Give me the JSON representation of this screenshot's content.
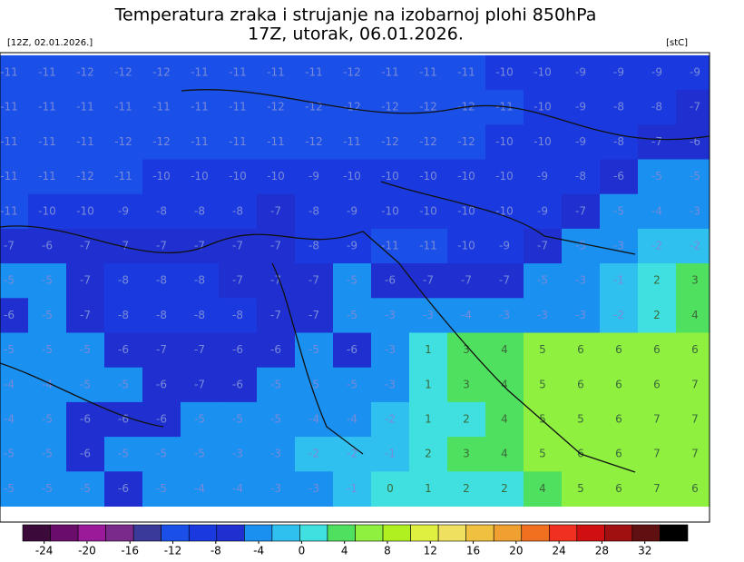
{
  "header": {
    "title": "Temperatura zraka i strujanje na izobarnoj plohi 850hPa",
    "subtitle": "17Z, utorak, 06.01.2026.",
    "run": "[12Z, 02.01.2026.]",
    "unit": "[stC]"
  },
  "map": {
    "rows": [
      [
        -11,
        -11,
        -12,
        -12,
        -12,
        -11,
        -11,
        -11,
        -11,
        -12,
        -11,
        -11,
        -11,
        -10,
        -10,
        -9,
        -9,
        -9,
        -9
      ],
      [
        -11,
        -11,
        -11,
        -11,
        -11,
        -11,
        -11,
        -12,
        -12,
        -12,
        -12,
        -12,
        -12,
        -11,
        -10,
        -9,
        -8,
        -8,
        -7
      ],
      [
        -11,
        -11,
        -11,
        -12,
        -12,
        -11,
        -11,
        -11,
        -12,
        -11,
        -12,
        -12,
        -12,
        -10,
        -10,
        -9,
        -8,
        -7,
        -6
      ],
      [
        -11,
        -11,
        -12,
        -11,
        -10,
        -10,
        -10,
        -10,
        -9,
        -10,
        -10,
        -10,
        -10,
        -10,
        -9,
        -8,
        -6,
        -5,
        -5
      ],
      [
        -11,
        -10,
        -10,
        -9,
        -8,
        -8,
        -8,
        -7,
        -8,
        -9,
        -10,
        -10,
        -10,
        -10,
        -9,
        -7,
        -5,
        -4,
        -3
      ],
      [
        -7,
        -6,
        -7,
        -7,
        -7,
        -7,
        -7,
        -7,
        -8,
        -9,
        -11,
        -11,
        -10,
        -9,
        -7,
        -5,
        -3,
        -2,
        -2
      ],
      [
        -5,
        -5,
        -7,
        -8,
        -8,
        -8,
        -7,
        -7,
        -7,
        -5,
        -6,
        -7,
        -7,
        -7,
        -5,
        -3,
        -1,
        2,
        3
      ],
      [
        -6,
        -5,
        -7,
        -8,
        -8,
        -8,
        -8,
        -7,
        -7,
        -5,
        -3,
        -3,
        -4,
        -3,
        -3,
        -3,
        -2,
        2,
        4
      ],
      [
        -5,
        -5,
        -5,
        -6,
        -7,
        -7,
        -6,
        -6,
        -5,
        -6,
        -3,
        1,
        3,
        4,
        5,
        6,
        6,
        6,
        6
      ],
      [
        -4,
        -4,
        -5,
        -5,
        -6,
        -7,
        -6,
        -5,
        -5,
        -5,
        -3,
        1,
        3,
        4,
        5,
        6,
        6,
        6,
        7
      ],
      [
        -4,
        -5,
        -6,
        -6,
        -6,
        -5,
        -5,
        -5,
        -4,
        -4,
        -2,
        1,
        2,
        4,
        5,
        5,
        6,
        7,
        7
      ],
      [
        -5,
        -5,
        -6,
        -5,
        -5,
        -5,
        -3,
        -3,
        -2,
        -2,
        -1,
        2,
        3,
        4,
        5,
        6,
        6,
        7,
        7
      ],
      [
        -5,
        -5,
        -5,
        -6,
        -5,
        -4,
        -4,
        -3,
        -3,
        -1,
        0,
        1,
        2,
        2,
        4,
        5,
        6,
        7,
        6
      ]
    ]
  },
  "colorbar": {
    "lim": [
      -26,
      36
    ],
    "ticks": [
      -24,
      -20,
      -16,
      -12,
      -8,
      -4,
      0,
      4,
      8,
      12,
      16,
      20,
      24,
      28,
      32
    ],
    "colors": [
      "#3b0a3b",
      "#6a0d6a",
      "#9a1a9a",
      "#7a2a8a",
      "#3a3a9a",
      "#1a50e8",
      "#1a3ae0",
      "#2030d0",
      "#1a90f0",
      "#30c0f0",
      "#40e0e0",
      "#50e060",
      "#90f040",
      "#b0f020",
      "#e0f040",
      "#f0e060",
      "#f0c040",
      "#f0a030",
      "#f07020",
      "#f03020",
      "#d01010",
      "#a01010",
      "#601010",
      "#000000"
    ]
  }
}
